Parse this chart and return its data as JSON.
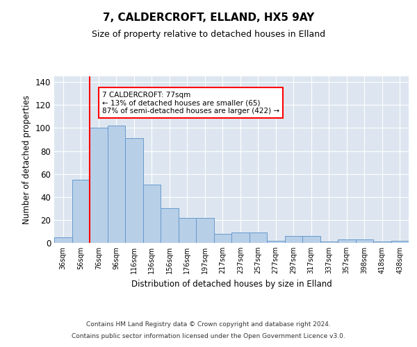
{
  "title": "7, CALDERCROFT, ELLAND, HX5 9AY",
  "subtitle": "Size of property relative to detached houses in Elland",
  "xlabel": "Distribution of detached houses by size in Elland",
  "ylabel": "Number of detached properties",
  "bar_color": "#b8cfe8",
  "bar_edge_color": "#6699cc",
  "background_color": "#dde6f0",
  "grid_color": "#ffffff",
  "categories": [
    "36sqm",
    "56sqm",
    "76sqm",
    "96sqm",
    "116sqm",
    "136sqm",
    "156sqm",
    "176sqm",
    "197sqm",
    "217sqm",
    "237sqm",
    "257sqm",
    "277sqm",
    "297sqm",
    "317sqm",
    "337sqm",
    "357sqm",
    "398sqm",
    "418sqm",
    "438sqm"
  ],
  "values": [
    5,
    55,
    100,
    102,
    91,
    51,
    30,
    22,
    22,
    8,
    9,
    9,
    2,
    6,
    6,
    1,
    3,
    3,
    1,
    2
  ],
  "red_line_x": 2,
  "annotation_text": "7 CALDERCROFT: 77sqm\n← 13% of detached houses are smaller (65)\n87% of semi-detached houses are larger (422) →",
  "annotation_box_color": "white",
  "annotation_box_edge_color": "red",
  "ylim": [
    0,
    145
  ],
  "yticks": [
    0,
    20,
    40,
    60,
    80,
    100,
    120,
    140
  ],
  "footer_line1": "Contains HM Land Registry data © Crown copyright and database right 2024.",
  "footer_line2": "Contains public sector information licensed under the Open Government Licence v3.0."
}
